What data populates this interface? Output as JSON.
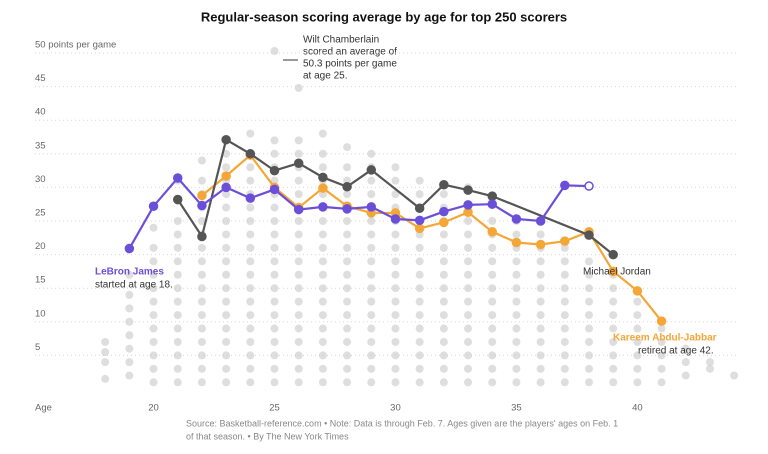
{
  "chart_data": {
    "type": "line",
    "title": "Regular-season scoring average by age for top 250 scorers",
    "x_label": "Age",
    "xlim": [
      15.1,
      44.2
    ],
    "xticks": [
      20,
      25,
      30,
      35,
      40
    ],
    "ylim": [
      0,
      50
    ],
    "yticks": [
      5,
      10,
      15,
      20,
      25,
      30,
      35,
      40,
      45,
      {
        "value": 50,
        "label": "50 points per game"
      }
    ],
    "grid": true,
    "background_color": "#c8c8c8",
    "background": [
      {
        "age": 18,
        "values": [
          1.5,
          4,
          5.5,
          7
        ]
      },
      {
        "age": 19,
        "values": [
          2,
          4,
          6,
          8,
          10,
          12,
          14,
          17,
          20.9
        ]
      },
      {
        "age": 20,
        "values": [
          1,
          3,
          5,
          7,
          9,
          11,
          13,
          15,
          17,
          19,
          21,
          24
        ]
      },
      {
        "age": 21,
        "values": [
          1,
          3,
          5,
          7,
          9,
          11,
          13,
          15,
          17,
          19,
          21,
          23,
          25,
          28,
          31
        ]
      },
      {
        "age": 22,
        "values": [
          1,
          3,
          5,
          7,
          9,
          11,
          13,
          15,
          17,
          19,
          21,
          23,
          25,
          27,
          29,
          31,
          34
        ]
      },
      {
        "age": 23,
        "values": [
          1,
          3,
          5,
          7,
          9,
          11,
          13,
          15,
          17,
          19,
          21,
          23,
          25,
          27,
          29,
          31,
          33,
          35,
          37
        ]
      },
      {
        "age": 24,
        "values": [
          1,
          3,
          5,
          7,
          9,
          11,
          13,
          15,
          17,
          19,
          21,
          23,
          25,
          27,
          29,
          31,
          33,
          35,
          38
        ]
      },
      {
        "age": 25,
        "values": [
          1,
          3,
          5,
          7,
          9,
          11,
          13,
          15,
          17,
          19,
          21,
          23,
          25,
          27,
          29,
          31,
          33,
          35,
          37,
          50.3
        ]
      },
      {
        "age": 26,
        "values": [
          1,
          3,
          5,
          7,
          9,
          11,
          13,
          15,
          17,
          19,
          21,
          23,
          25,
          27,
          29,
          31,
          33,
          35,
          37,
          44.8
        ]
      },
      {
        "age": 27,
        "values": [
          1,
          3,
          5,
          7,
          9,
          11,
          13,
          15,
          17,
          19,
          21,
          23,
          25,
          27,
          29,
          31,
          33,
          35,
          38
        ]
      },
      {
        "age": 28,
        "values": [
          1,
          3,
          5,
          7,
          9,
          11,
          13,
          15,
          17,
          19,
          21,
          23,
          25,
          27,
          29,
          31,
          33,
          36
        ]
      },
      {
        "age": 29,
        "values": [
          1,
          3,
          5,
          7,
          9,
          11,
          13,
          15,
          17,
          19,
          21,
          23,
          25,
          27,
          29,
          31,
          33,
          35
        ]
      },
      {
        "age": 30,
        "values": [
          1,
          3,
          5,
          7,
          9,
          11,
          13,
          15,
          17,
          19,
          21,
          23,
          25,
          27,
          29,
          31,
          33
        ]
      },
      {
        "age": 31,
        "values": [
          1,
          3,
          5,
          7,
          9,
          11,
          13,
          15,
          17,
          19,
          21,
          23,
          25,
          27,
          29,
          31
        ]
      },
      {
        "age": 32,
        "values": [
          1,
          3,
          5,
          7,
          9,
          11,
          13,
          15,
          17,
          19,
          21,
          23,
          25,
          27,
          29
        ]
      },
      {
        "age": 33,
        "values": [
          1,
          3,
          5,
          7,
          9,
          11,
          13,
          15,
          17,
          19,
          21,
          23,
          25,
          27,
          30
        ]
      },
      {
        "age": 34,
        "values": [
          1,
          3,
          5,
          7,
          9,
          11,
          13,
          15,
          17,
          19,
          21,
          23,
          25,
          28
        ]
      },
      {
        "age": 35,
        "values": [
          1,
          3,
          5,
          7,
          9,
          11,
          13,
          15,
          17,
          19,
          21,
          23,
          25
        ]
      },
      {
        "age": 36,
        "values": [
          1,
          3,
          5,
          7,
          9,
          11,
          13,
          15,
          17,
          19,
          21,
          23
        ]
      },
      {
        "age": 37,
        "values": [
          1,
          3,
          5,
          7,
          9,
          11,
          13,
          15,
          17,
          19,
          21
        ]
      },
      {
        "age": 38,
        "values": [
          1,
          3,
          5,
          7,
          9,
          11,
          13,
          15,
          17,
          19
        ]
      },
      {
        "age": 39,
        "values": [
          1,
          3,
          5,
          7,
          9,
          11,
          13,
          15,
          17
        ]
      },
      {
        "age": 40,
        "values": [
          1,
          3,
          5,
          7,
          9,
          11,
          13
        ]
      },
      {
        "age": 41,
        "values": [
          1,
          3,
          5,
          7,
          9
        ]
      },
      {
        "age": 42,
        "values": [
          2,
          4,
          6
        ]
      },
      {
        "age": 43,
        "values": [
          3,
          4
        ]
      },
      {
        "age": 44,
        "values": [
          2
        ]
      }
    ],
    "series": [
      {
        "name": "Kareem Abdul-Jabbar",
        "color": "#f4a637",
        "x": [
          22,
          23,
          24,
          25,
          26,
          27,
          28,
          29,
          30,
          31,
          32,
          33,
          34,
          35,
          36,
          37,
          38,
          39,
          40,
          41
        ],
        "values": [
          28.8,
          31.7,
          34.8,
          30.0,
          27.0,
          29.9,
          27.2,
          26.2,
          26.2,
          23.9,
          24.8,
          26.3,
          23.4,
          21.8,
          21.5,
          22.0,
          23.4,
          17.5,
          14.6,
          10.1
        ],
        "note": "retired at age 42."
      },
      {
        "name": "Michael Jordan",
        "color": "#555555",
        "x": [
          21,
          22,
          23,
          24,
          25,
          26,
          27,
          28,
          29,
          31,
          32,
          33,
          34,
          38,
          39
        ],
        "values": [
          28.2,
          22.7,
          37.1,
          35.0,
          32.5,
          33.6,
          31.5,
          30.1,
          32.6,
          26.9,
          30.4,
          29.6,
          28.7,
          22.9,
          20.0
        ]
      },
      {
        "name": "LeBron James",
        "color": "#6b4fd8",
        "hollow_last": true,
        "x": [
          19,
          20,
          21,
          22,
          23,
          24,
          25,
          26,
          27,
          28,
          29,
          30,
          31,
          32,
          33,
          34,
          35,
          36,
          37,
          38
        ],
        "values": [
          20.9,
          27.2,
          31.4,
          27.3,
          30.0,
          28.4,
          29.7,
          26.7,
          27.1,
          26.8,
          27.1,
          25.3,
          25.1,
          26.4,
          27.4,
          27.5,
          25.3,
          25.0,
          30.3,
          30.2
        ],
        "note": "started at age 18."
      }
    ],
    "annotation": [
      "Wilt Chamberlain",
      "scored an average of",
      "50.3 points per game",
      "at age 25."
    ],
    "source": [
      "Source: Basketball-reference.com  •  Note: Data is through Feb. 7. Ages given are the players' ages on Feb. 1",
      "of that season.  •  By The New York Times"
    ]
  }
}
